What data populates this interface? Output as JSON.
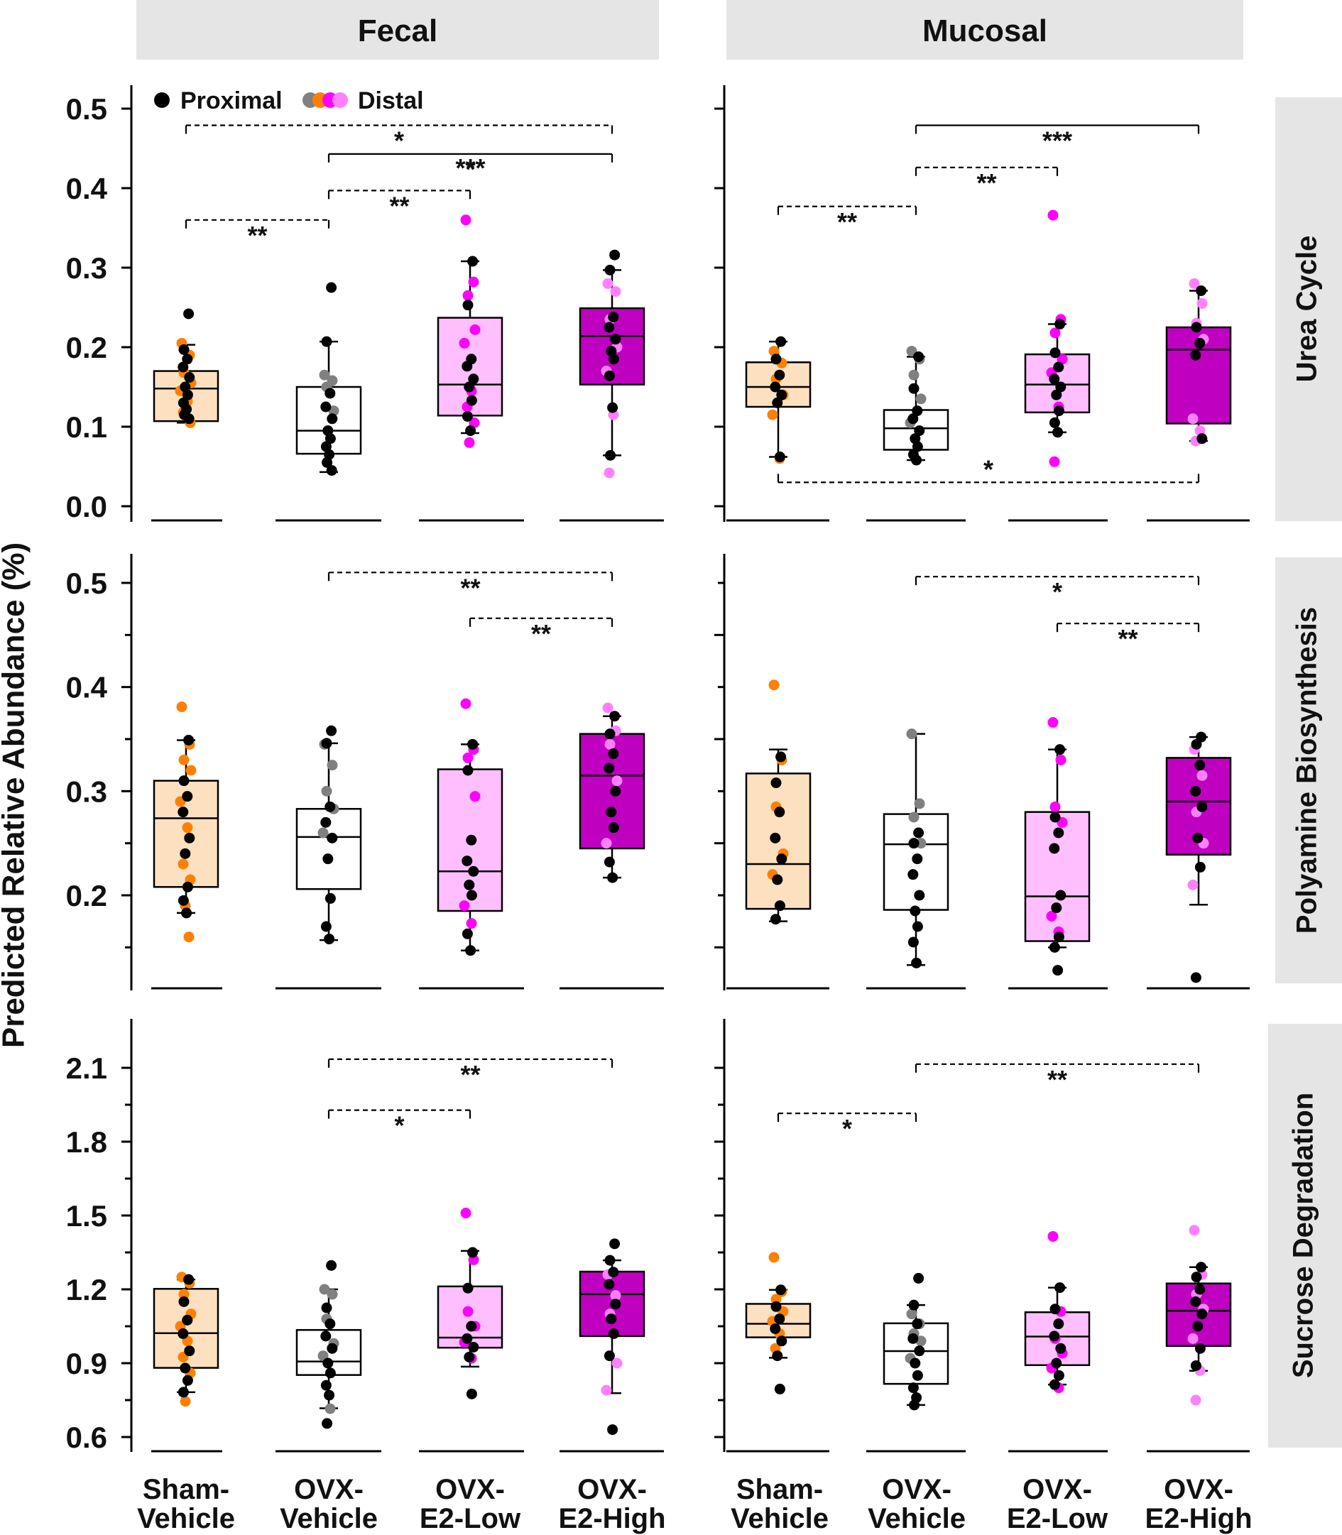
{
  "chart_data": {
    "type": "box",
    "ylabel": "Predicted Relative Abundance  (%)",
    "columns": [
      "Fecal",
      "Mucosal"
    ],
    "rows": [
      "Urea Cycle",
      "Polyamine Biosynthesis",
      "Sucrose Degradation"
    ],
    "categories": [
      {
        "line1": "Sham-",
        "line2": "Vehicle"
      },
      {
        "line1": "OVX-",
        "line2": "Vehicle"
      },
      {
        "line1": "OVX-",
        "line2": "E2-Low"
      },
      {
        "line1": "OVX-",
        "line2": "E2-High"
      }
    ],
    "legend": {
      "proximal": "Proximal",
      "distal": "Distal"
    },
    "colors": {
      "proximal": "#000000",
      "sham_dot": "#ff8000",
      "sham_fill": "#fde0bf",
      "veh_dot": "#808080",
      "veh_fill": "#ffffff",
      "low_dot": "#ff00ff",
      "low_fill": "#ffbfff",
      "high_dot": "#ff80ff",
      "high_fill": "#c000c0",
      "strip": "#e5e5e5"
    },
    "panels": [
      {
        "row": 0,
        "col": 0,
        "ylim": [
          -0.02,
          0.52
        ],
        "yticks": [
          0.0,
          0.1,
          0.2,
          0.3,
          0.4,
          0.5
        ],
        "yticklabels": [
          "0.0",
          "0.1",
          "0.2",
          "0.3",
          "0.4",
          "0.5"
        ],
        "boxes": [
          {
            "q1": 0.107,
            "median": 0.148,
            "q3": 0.17,
            "lo": 0.105,
            "hi": 0.203,
            "proximal": [
              0.242,
              0.197,
              0.185,
              0.175,
              0.162,
              0.15,
              0.14,
              0.13,
              0.122,
              0.115,
              0.11
            ],
            "distal": [
              0.205,
              0.19,
              0.168,
              0.155,
              0.145,
              0.132,
              0.118,
              0.105
            ]
          },
          {
            "q1": 0.066,
            "median": 0.095,
            "q3": 0.15,
            "lo": 0.043,
            "hi": 0.207,
            "proximal": [
              0.275,
              0.207,
              0.142,
              0.125,
              0.11,
              0.095,
              0.085,
              0.075,
              0.065,
              0.055,
              0.045
            ],
            "distal": [
              0.165,
              0.158,
              0.15,
              0.12
            ]
          },
          {
            "q1": 0.114,
            "median": 0.153,
            "q3": 0.237,
            "lo": 0.092,
            "hi": 0.308,
            "proximal": [
              0.308,
              0.253,
              0.185,
              0.176,
              0.16,
              0.15,
              0.133,
              0.113,
              0.095
            ],
            "distal": [
              0.36,
              0.282,
              0.265,
              0.222,
              0.205,
              0.145,
              0.125,
              0.105,
              0.08
            ]
          },
          {
            "q1": 0.153,
            "median": 0.214,
            "q3": 0.249,
            "lo": 0.064,
            "hi": 0.297,
            "proximal": [
              0.316,
              0.297,
              0.238,
              0.225,
              0.21,
              0.195,
              0.185,
              0.164,
              0.124,
              0.064
            ],
            "distal": [
              0.28,
              0.27,
              0.235,
              0.2,
              0.17,
              0.115,
              0.042
            ]
          }
        ],
        "brackets": [
          {
            "from": 0,
            "to": 3,
            "y": 0.479,
            "label": "*",
            "dashed": true
          },
          {
            "from": 1,
            "to": 3,
            "y": 0.443,
            "label": "*",
            "dashed": false
          },
          {
            "from": 1,
            "to": 3,
            "y": 0.443,
            "label": "***",
            "dashed": false,
            "label_below": true
          },
          {
            "from": 1,
            "to": 2,
            "y": 0.397,
            "label": "**",
            "dashed": true
          },
          {
            "from": 0,
            "to": 1,
            "y": 0.36,
            "label": "**",
            "dashed": true
          }
        ]
      },
      {
        "row": 0,
        "col": 1,
        "ylim": [
          -0.02,
          0.52
        ],
        "yticks": [
          0.0,
          0.1,
          0.2,
          0.3,
          0.4,
          0.5
        ],
        "yticklabels": [
          "",
          "",
          "",
          "",
          "",
          ""
        ],
        "boxes": [
          {
            "q1": 0.125,
            "median": 0.15,
            "q3": 0.181,
            "lo": 0.062,
            "hi": 0.207,
            "proximal": [
              0.207,
              0.185,
              0.165,
              0.15,
              0.14,
              0.13,
              0.062
            ],
            "distal": [
              0.195,
              0.18,
              0.16,
              0.14,
              0.115,
              0.06
            ]
          },
          {
            "q1": 0.071,
            "median": 0.098,
            "q3": 0.121,
            "lo": 0.058,
            "hi": 0.188,
            "proximal": [
              0.188,
              0.148,
              0.12,
              0.11,
              0.095,
              0.085,
              0.075,
              0.065,
              0.058
            ],
            "distal": [
              0.195,
              0.185,
              0.165,
              0.135,
              0.105
            ]
          },
          {
            "q1": 0.118,
            "median": 0.153,
            "q3": 0.191,
            "lo": 0.093,
            "hi": 0.229,
            "proximal": [
              0.229,
              0.193,
              0.175,
              0.16,
              0.15,
              0.14,
              0.12,
              0.105,
              0.093
            ],
            "distal": [
              0.366,
              0.235,
              0.218,
              0.185,
              0.168,
              0.125,
              0.056
            ]
          },
          {
            "q1": 0.104,
            "median": 0.197,
            "q3": 0.225,
            "lo": 0.082,
            "hi": 0.271,
            "proximal": [
              0.271,
              0.225,
              0.205,
              0.19,
              0.085
            ],
            "distal": [
              0.28,
              0.255,
              0.23,
              0.21,
              0.11,
              0.095,
              0.082
            ]
          }
        ],
        "brackets": [
          {
            "from": 1,
            "to": 3,
            "y": 0.479,
            "label": "***",
            "dashed": false
          },
          {
            "from": 1,
            "to": 2,
            "y": 0.426,
            "label": "**",
            "dashed": true
          },
          {
            "from": 0,
            "to": 1,
            "y": 0.377,
            "label": "**",
            "dashed": true
          },
          {
            "from": 0,
            "to": 3,
            "y": 0.03,
            "label": "*",
            "dashed": true,
            "inverted": true
          }
        ]
      },
      {
        "row": 1,
        "col": 0,
        "ylim": [
          0.09,
          0.53
        ],
        "yticks": [
          0.15,
          0.2,
          0.25,
          0.3,
          0.35,
          0.4,
          0.45,
          0.5
        ],
        "yticklabels": [
          "",
          "0.2",
          "",
          "0.3",
          "",
          "0.4",
          "",
          "0.5"
        ],
        "boxes": [
          {
            "q1": 0.208,
            "median": 0.274,
            "q3": 0.31,
            "lo": 0.183,
            "hi": 0.349,
            "proximal": [
              0.349,
              0.31,
              0.295,
              0.28,
              0.255,
              0.24,
              0.208,
              0.195,
              0.183
            ],
            "distal": [
              0.381,
              0.345,
              0.33,
              0.32,
              0.29,
              0.265,
              0.23,
              0.215,
              0.19,
              0.16
            ]
          },
          {
            "q1": 0.206,
            "median": 0.256,
            "q3": 0.283,
            "lo": 0.157,
            "hi": 0.346,
            "proximal": [
              0.358,
              0.346,
              0.285,
              0.27,
              0.255,
              0.235,
              0.197,
              0.17,
              0.158
            ],
            "distal": [
              0.345,
              0.325,
              0.3,
              0.283,
              0.26
            ]
          },
          {
            "q1": 0.185,
            "median": 0.223,
            "q3": 0.321,
            "lo": 0.147,
            "hi": 0.345,
            "proximal": [
              0.345,
              0.32,
              0.253,
              0.233,
              0.223,
              0.21,
              0.2,
              0.163,
              0.147
            ],
            "distal": [
              0.384,
              0.34,
              0.332,
              0.295,
              0.19,
              0.173
            ]
          },
          {
            "q1": 0.245,
            "median": 0.315,
            "q3": 0.355,
            "lo": 0.217,
            "hi": 0.372,
            "proximal": [
              0.372,
              0.355,
              0.336,
              0.322,
              0.3,
              0.28,
              0.265,
              0.232,
              0.217
            ],
            "distal": [
              0.38,
              0.358,
              0.345,
              0.31,
              0.25
            ]
          }
        ],
        "brackets": [
          {
            "from": 1,
            "to": 3,
            "y": 0.51,
            "label": "**",
            "dashed": true
          },
          {
            "from": 2,
            "to": 3,
            "y": 0.466,
            "label": "**",
            "dashed": true
          }
        ]
      },
      {
        "row": 1,
        "col": 1,
        "ylim": [
          0.09,
          0.53
        ],
        "yticks": [
          0.15,
          0.2,
          0.25,
          0.3,
          0.35,
          0.4,
          0.45,
          0.5
        ],
        "yticklabels": [
          "",
          "",
          "",
          "",
          "",
          "",
          "",
          ""
        ],
        "boxes": [
          {
            "q1": 0.187,
            "median": 0.23,
            "q3": 0.317,
            "lo": 0.175,
            "hi": 0.34,
            "proximal": [
              0.333,
              0.308,
              0.28,
              0.255,
              0.235,
              0.215,
              0.19,
              0.177
            ],
            "distal": [
              0.402,
              0.33,
              0.285,
              0.24,
              0.22
            ]
          },
          {
            "q1": 0.186,
            "median": 0.249,
            "q3": 0.278,
            "lo": 0.133,
            "hi": 0.355,
            "proximal": [
              0.26,
              0.25,
              0.235,
              0.22,
              0.2,
              0.185,
              0.17,
              0.155,
              0.135
            ],
            "distal": [
              0.355,
              0.288,
              0.275,
              0.25
            ]
          },
          {
            "q1": 0.156,
            "median": 0.199,
            "q3": 0.28,
            "lo": 0.15,
            "hi": 0.34,
            "proximal": [
              0.34,
              0.275,
              0.26,
              0.245,
              0.2,
              0.188,
              0.16,
              0.15,
              0.128
            ],
            "distal": [
              0.366,
              0.33,
              0.285,
              0.27,
              0.18,
              0.165
            ]
          },
          {
            "q1": 0.239,
            "median": 0.29,
            "q3": 0.332,
            "lo": 0.191,
            "hi": 0.352,
            "proximal": [
              0.352,
              0.345,
              0.325,
              0.3,
              0.285,
              0.255,
              0.227,
              0.121
            ],
            "distal": [
              0.34,
              0.315,
              0.28,
              0.25,
              0.21
            ]
          }
        ],
        "brackets": [
          {
            "from": 1,
            "to": 3,
            "y": 0.506,
            "label": "*",
            "dashed": true
          },
          {
            "from": 2,
            "to": 3,
            "y": 0.461,
            "label": "**",
            "dashed": true
          }
        ]
      },
      {
        "row": 2,
        "col": 0,
        "ylim": [
          0.54,
          2.25
        ],
        "yticks": [
          0.6,
          0.75,
          0.9,
          1.05,
          1.2,
          1.35,
          1.5,
          1.65,
          1.8,
          1.95,
          2.1
        ],
        "yticklabels": [
          "0.6",
          "",
          "0.9",
          "",
          "1.2",
          "",
          "1.5",
          "",
          "1.8",
          "",
          "2.1"
        ],
        "boxes": [
          {
            "q1": 0.881,
            "median": 1.022,
            "q3": 1.202,
            "lo": 0.782,
            "hi": 1.24,
            "proximal": [
              1.24,
              1.15,
              1.075,
              1.02,
              0.95,
              0.88,
              0.83,
              0.782
            ],
            "distal": [
              1.25,
              1.225,
              1.18,
              1.1,
              1.05,
              0.99,
              0.925,
              0.86,
              0.745
            ]
          },
          {
            "q1": 0.852,
            "median": 0.907,
            "q3": 1.035,
            "lo": 0.717,
            "hi": 1.2,
            "proximal": [
              1.297,
              1.125,
              1.06,
              1.01,
              0.96,
              0.9,
              0.86,
              0.81,
              0.77,
              0.655
            ],
            "distal": [
              1.2,
              1.18,
              1.08,
              0.98,
              0.93,
              0.715
            ]
          },
          {
            "q1": 0.963,
            "median": 1.004,
            "q3": 1.212,
            "lo": 0.886,
            "hi": 1.356,
            "proximal": [
              1.35,
              1.205,
              1.05,
              1.0,
              0.965,
              0.925,
              0.775
            ],
            "distal": [
              1.51,
              1.32,
              1.11,
              1.05,
              0.985,
              0.92
            ]
          },
          {
            "q1": 1.01,
            "median": 1.18,
            "q3": 1.272,
            "lo": 0.778,
            "hi": 1.318,
            "proximal": [
              1.385,
              1.318,
              1.27,
              1.22,
              1.14,
              1.08,
              1.02,
              0.93,
              0.63
            ],
            "distal": [
              1.26,
              1.175,
              1.1,
              0.9,
              0.79
            ]
          }
        ],
        "brackets": [
          {
            "from": 1,
            "to": 3,
            "y": 2.135,
            "label": "**",
            "dashed": true
          },
          {
            "from": 1,
            "to": 2,
            "y": 1.928,
            "label": "*",
            "dashed": true
          }
        ]
      },
      {
        "row": 2,
        "col": 1,
        "ylim": [
          0.54,
          2.25
        ],
        "yticks": [
          0.6,
          0.75,
          0.9,
          1.05,
          1.2,
          1.35,
          1.5,
          1.65,
          1.8,
          1.95,
          2.1
        ],
        "yticklabels": [
          "",
          "",
          "",
          "",
          "",
          "",
          "",
          "",
          "",
          "",
          ""
        ],
        "boxes": [
          {
            "q1": 1.005,
            "median": 1.06,
            "q3": 1.141,
            "lo": 0.922,
            "hi": 1.198,
            "proximal": [
              1.198,
              1.13,
              1.08,
              1.04,
              0.99,
              0.93,
              0.795
            ],
            "distal": [
              1.33,
              1.19,
              1.16,
              1.11,
              1.07,
              1.02,
              0.96
            ]
          },
          {
            "q1": 0.816,
            "median": 0.949,
            "q3": 1.062,
            "lo": 0.73,
            "hi": 1.136,
            "proximal": [
              1.245,
              1.136,
              1.06,
              1.0,
              0.95,
              0.9,
              0.85,
              0.8,
              0.76,
              0.73
            ],
            "distal": [
              1.1,
              1.06,
              1.02,
              0.99,
              0.92
            ]
          },
          {
            "q1": 0.892,
            "median": 1.008,
            "q3": 1.107,
            "lo": 0.813,
            "hi": 1.207,
            "proximal": [
              1.207,
              1.12,
              1.06,
              1.01,
              0.96,
              0.9,
              0.85,
              0.813
            ],
            "distal": [
              1.415,
              1.11,
              1.0,
              0.94,
              0.88,
              0.8
            ]
          },
          {
            "q1": 0.97,
            "median": 1.113,
            "q3": 1.224,
            "lo": 0.869,
            "hi": 1.29,
            "proximal": [
              1.29,
              1.25,
              1.2,
              1.15,
              1.1,
              1.05,
              0.96,
              0.89
            ],
            "distal": [
              1.44,
              1.26,
              1.18,
              1.12,
              1.0,
              0.87,
              0.75
            ]
          }
        ],
        "brackets": [
          {
            "from": 1,
            "to": 3,
            "y": 2.115,
            "label": "**",
            "dashed": true
          },
          {
            "from": 0,
            "to": 1,
            "y": 1.915,
            "label": "*",
            "dashed": true
          }
        ]
      }
    ]
  }
}
